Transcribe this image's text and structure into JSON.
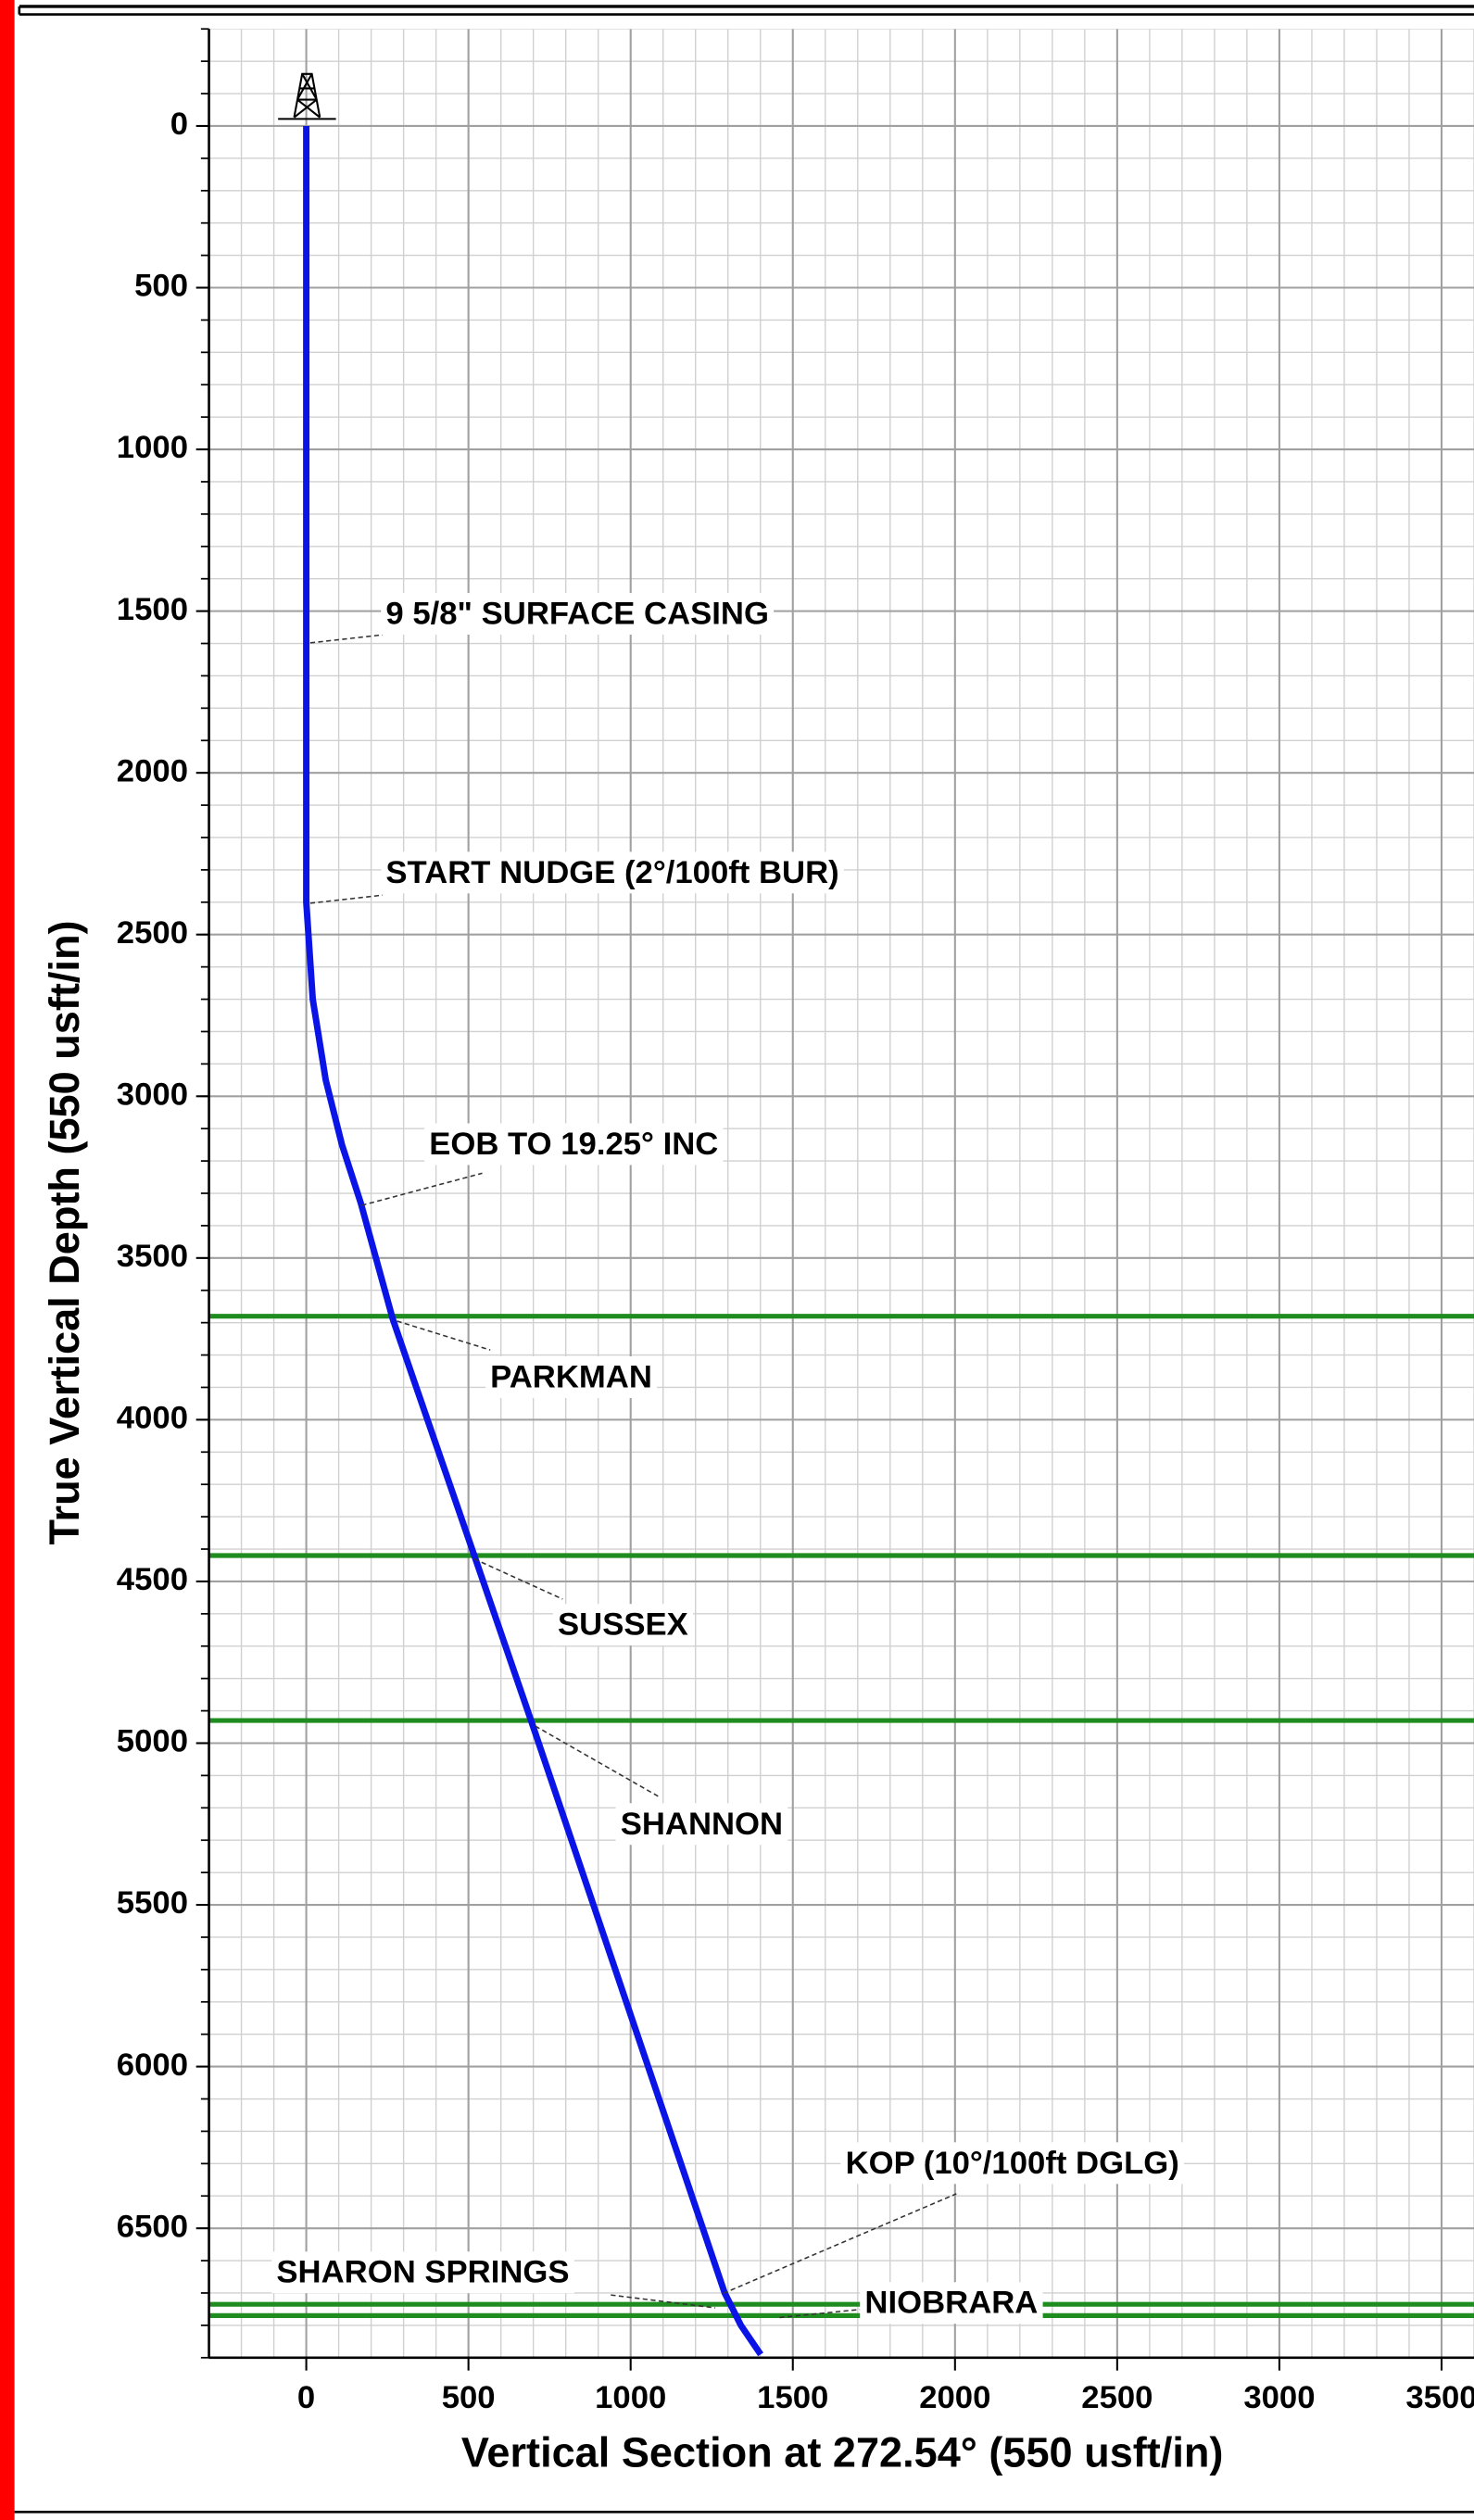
{
  "chart_data": {
    "type": "line",
    "xlabel": "Vertical Section at 272.54° (550 usft/in)",
    "ylabel": "True Vertical Depth (550 usft/in)",
    "x": [
      0,
      0,
      20,
      60,
      110,
      168,
      267,
      518,
      693,
      1290,
      1340,
      1401
    ],
    "series": [
      {
        "color": "#0a14e6",
        "values": [
          0,
          2400,
          2700,
          2950,
          3150,
          3330,
          3690,
          4420,
          4930,
          6700,
          6800,
          6890
        ]
      }
    ],
    "xlim": [
      -300,
      3600
    ],
    "ylim": [
      -300,
      6900
    ],
    "y_inverted": true,
    "xticks": [
      0,
      500,
      1000,
      1500,
      2000,
      2500,
      3000,
      3500
    ],
    "yticks": [
      0,
      500,
      1000,
      1500,
      2000,
      2500,
      3000,
      3500,
      4000,
      4500,
      5000,
      5500,
      6000,
      6500
    ],
    "grid": true,
    "formation_color": "#1e8c1e",
    "formations": [
      {
        "name": "PARKMAN",
        "tvd": 3680
      },
      {
        "name": "SUSSEX",
        "tvd": 4420
      },
      {
        "name": "SHANNON",
        "tvd": 4930
      },
      {
        "name": "SHARON SPRINGS",
        "tvd": 6735
      },
      {
        "name": "NIOBRARA",
        "tvd": 6770
      }
    ],
    "annotations": [
      "9 5/8\" SURFACE CASING",
      "START NUDGE (2°/100ft BUR)",
      "EOB TO 19.25° INC",
      "KOP (10°/100ft DGLG)"
    ]
  }
}
